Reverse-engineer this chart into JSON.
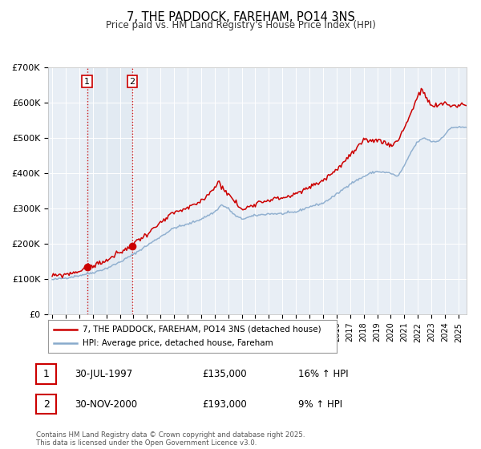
{
  "title": "7, THE PADDOCK, FAREHAM, PO14 3NS",
  "subtitle": "Price paid vs. HM Land Registry's House Price Index (HPI)",
  "legend_line1": "7, THE PADDOCK, FAREHAM, PO14 3NS (detached house)",
  "legend_line2": "HPI: Average price, detached house, Fareham",
  "transaction1_label": "1",
  "transaction1_date": "30-JUL-1997",
  "transaction1_price": "£135,000",
  "transaction1_hpi": "16% ↑ HPI",
  "transaction2_label": "2",
  "transaction2_date": "30-NOV-2000",
  "transaction2_price": "£193,000",
  "transaction2_hpi": "9% ↑ HPI",
  "footer": "Contains HM Land Registry data © Crown copyright and database right 2025.\nThis data is licensed under the Open Government Licence v3.0.",
  "price_color": "#cc0000",
  "hpi_color": "#88aacc",
  "transaction1_x": 1997.58,
  "transaction2_x": 2000.92,
  "plot_bg_color": "#e8eef5",
  "ylim": [
    0,
    700000
  ],
  "xlim_start": 1994.7,
  "xlim_end": 2025.6,
  "hpi_key_years": [
    1995.0,
    1996.0,
    1997.0,
    1998.0,
    1999.0,
    2000.0,
    2001.0,
    2002.0,
    2003.0,
    2004.0,
    2005.0,
    2006.0,
    2007.0,
    2007.5,
    2008.0,
    2008.5,
    2009.0,
    2009.5,
    2010.0,
    2011.0,
    2012.0,
    2013.0,
    2014.0,
    2015.0,
    2016.0,
    2017.0,
    2018.0,
    2018.5,
    2019.0,
    2020.0,
    2020.5,
    2021.0,
    2021.5,
    2022.0,
    2022.5,
    2023.0,
    2023.5,
    2024.0,
    2024.5,
    2025.5
  ],
  "hpi_key_vals": [
    98000,
    103000,
    110000,
    118000,
    130000,
    148000,
    170000,
    195000,
    220000,
    245000,
    255000,
    270000,
    290000,
    310000,
    300000,
    280000,
    270000,
    275000,
    280000,
    285000,
    285000,
    290000,
    305000,
    315000,
    340000,
    370000,
    390000,
    400000,
    405000,
    400000,
    390000,
    420000,
    460000,
    490000,
    500000,
    490000,
    490000,
    510000,
    530000,
    530000
  ],
  "price_key_years": [
    1995.0,
    1996.0,
    1997.0,
    1997.58,
    1998.0,
    1999.0,
    2000.0,
    2000.92,
    2001.0,
    2002.0,
    2003.0,
    2004.0,
    2005.0,
    2006.0,
    2007.0,
    2007.3,
    2007.7,
    2008.0,
    2008.5,
    2009.0,
    2009.5,
    2010.0,
    2011.0,
    2012.0,
    2013.0,
    2014.0,
    2015.0,
    2016.0,
    2017.0,
    2018.0,
    2019.0,
    2020.0,
    2020.5,
    2021.0,
    2021.5,
    2022.0,
    2022.3,
    2022.7,
    2023.0,
    2023.5,
    2024.0,
    2024.5,
    2025.5
  ],
  "price_key_vals": [
    108000,
    113000,
    122000,
    135000,
    138000,
    152000,
    175000,
    193000,
    200000,
    228000,
    258000,
    288000,
    300000,
    320000,
    360000,
    375000,
    355000,
    340000,
    320000,
    295000,
    305000,
    315000,
    325000,
    330000,
    340000,
    360000,
    380000,
    410000,
    450000,
    490000,
    495000,
    480000,
    490000,
    530000,
    570000,
    620000,
    635000,
    610000,
    590000,
    590000,
    600000,
    590000,
    595000
  ]
}
